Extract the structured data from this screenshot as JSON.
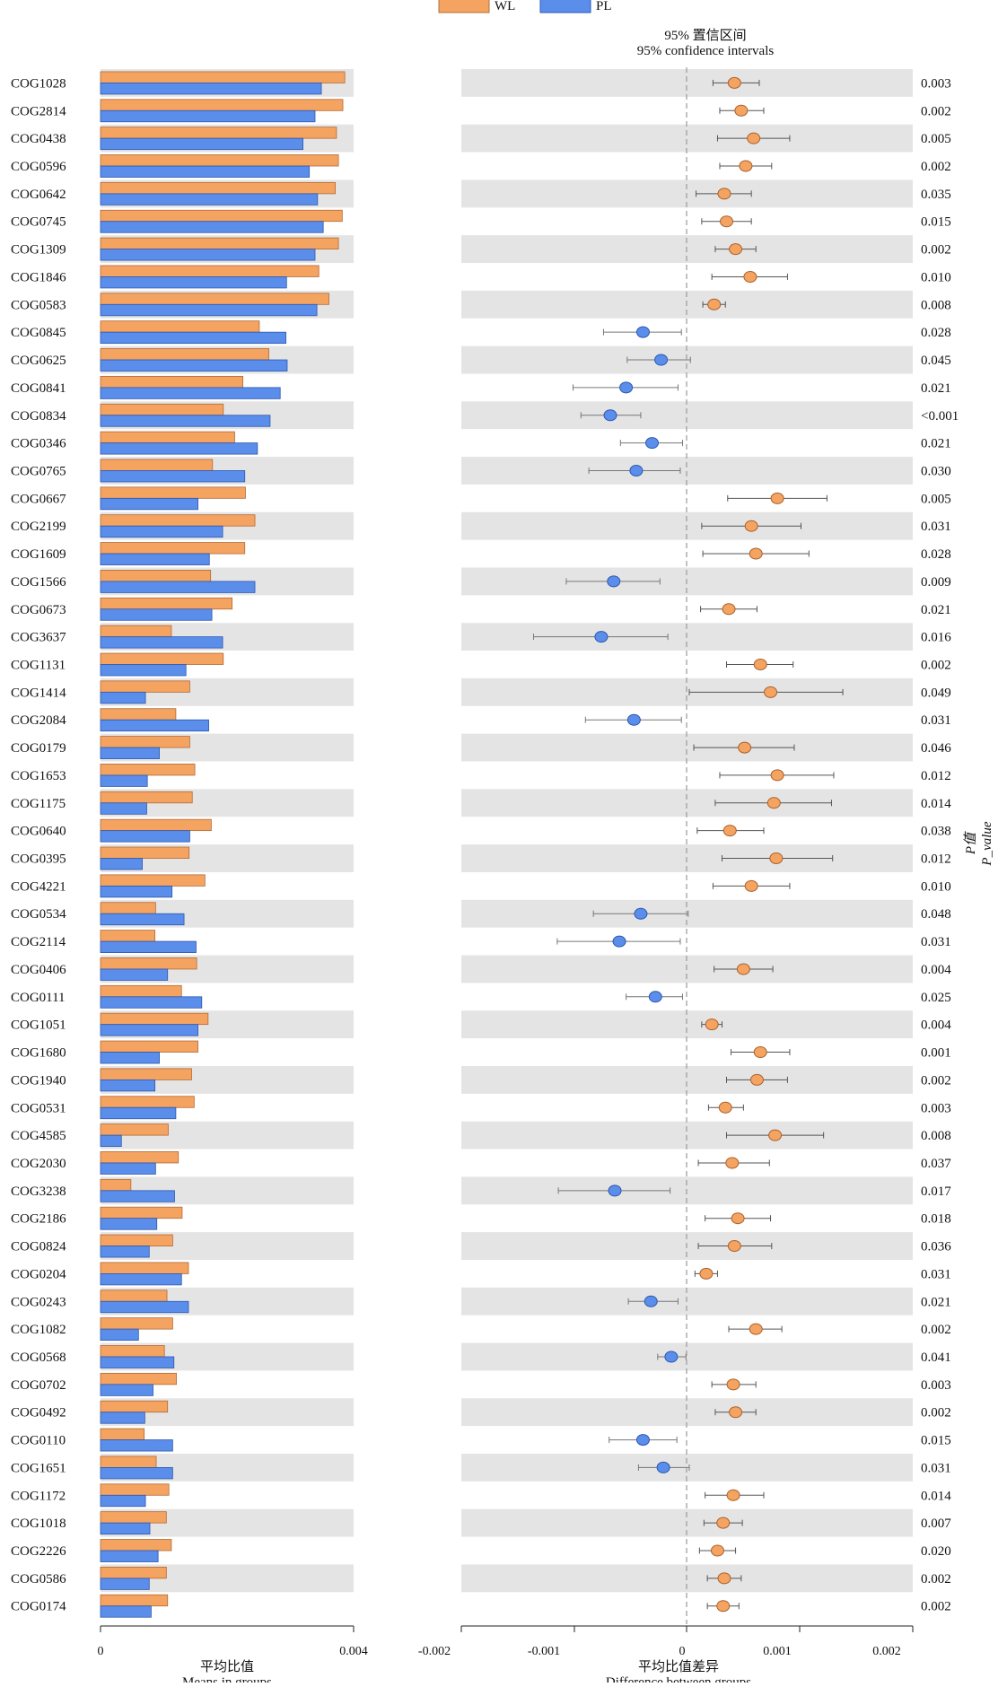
{
  "chart_data": {
    "type": "extended_error_bar",
    "legend": {
      "placement": "top",
      "entries": [
        {
          "name": "WL",
          "color": "#F4A361"
        },
        {
          "name": "PL",
          "color": "#5B8DEB"
        }
      ]
    },
    "ci_title": "95% 置信区间",
    "ci_title_en": "95% confidence intervals",
    "pvalue_label": "P值",
    "pvalue_label_en": "P_value",
    "left_panel": {
      "xlabel": "平均比值",
      "xlabel_en": "Means in groups",
      "xlim": [
        0,
        0.004
      ],
      "ticks": [
        "0",
        "0.004"
      ]
    },
    "right_panel": {
      "xlabel": "平均比值差异",
      "xlabel_en": "Difference between groups",
      "xlim": [
        -0.002,
        0.002
      ],
      "ticks": [
        "-0.002",
        "-0.001",
        "0",
        "0.001",
        "0.002"
      ],
      "zero_line": "dashed"
    },
    "categories": [
      "COG1028",
      "COG2814",
      "COG0438",
      "COG0596",
      "COG0642",
      "COG0745",
      "COG1309",
      "COG1846",
      "COG0583",
      "COG0845",
      "COG0625",
      "COG0841",
      "COG0834",
      "COG0346",
      "COG0765",
      "COG0667",
      "COG2199",
      "COG1609",
      "COG1566",
      "COG0673",
      "COG3637",
      "COG1131",
      "COG1414",
      "COG2084",
      "COG0179",
      "COG1653",
      "COG1175",
      "COG0640",
      "COG0395",
      "COG4221",
      "COG0534",
      "COG2114",
      "COG0406",
      "COG0111",
      "COG1051",
      "COG1680",
      "COG1940",
      "COG0531",
      "COG4585",
      "COG2030",
      "COG3238",
      "COG2186",
      "COG0824",
      "COG0204",
      "COG0243",
      "COG1082",
      "COG0568",
      "COG0702",
      "COG0492",
      "COG0110",
      "COG1651",
      "COG1172",
      "COG1018",
      "COG2226",
      "COG0586",
      "COG0174"
    ],
    "series": [
      {
        "name": "WL",
        "values": [
          0.00386,
          0.00383,
          0.00373,
          0.00376,
          0.00371,
          0.00382,
          0.00376,
          0.00345,
          0.00361,
          0.00251,
          0.00266,
          0.00225,
          0.00194,
          0.00212,
          0.00177,
          0.00229,
          0.00244,
          0.00228,
          0.00174,
          0.00208,
          0.00112,
          0.00194,
          0.00141,
          0.00119,
          0.00141,
          0.00149,
          0.00145,
          0.00175,
          0.0014,
          0.00165,
          0.00087,
          0.00086,
          0.00152,
          0.00128,
          0.0017,
          0.00154,
          0.00144,
          0.00148,
          0.00107,
          0.00123,
          0.00048,
          0.00129,
          0.00114,
          0.00139,
          0.00105,
          0.00114,
          0.00101,
          0.0012,
          0.00106,
          0.00069,
          0.00088,
          0.00108,
          0.00104,
          0.00112,
          0.00104,
          0.00106
        ]
      },
      {
        "name": "PL",
        "values": [
          0.00349,
          0.00339,
          0.0032,
          0.0033,
          0.00343,
          0.00352,
          0.00339,
          0.00294,
          0.00342,
          0.00293,
          0.00295,
          0.00284,
          0.00268,
          0.00248,
          0.00228,
          0.00154,
          0.00193,
          0.00172,
          0.00244,
          0.00176,
          0.00193,
          0.00135,
          0.00071,
          0.00171,
          0.00093,
          0.00074,
          0.00073,
          0.00141,
          0.00066,
          0.00113,
          0.00132,
          0.00151,
          0.00106,
          0.0016,
          0.00154,
          0.00093,
          0.00086,
          0.00119,
          0.00033,
          0.00087,
          0.00117,
          0.00089,
          0.00077,
          0.00128,
          0.00139,
          0.0006,
          0.00116,
          0.00083,
          0.0007,
          0.00114,
          0.00114,
          0.00071,
          0.00078,
          0.00091,
          0.00077,
          0.0008
        ]
      }
    ],
    "differences": [
      0.00042,
      0.00048,
      0.00059,
      0.00052,
      0.00033,
      0.00035,
      0.00043,
      0.00056,
      0.00024,
      -0.00039,
      -0.00023,
      -0.00054,
      -0.00068,
      -0.00031,
      -0.00045,
      0.0008,
      0.00057,
      0.00061,
      -0.00065,
      0.00037,
      -0.00076,
      0.00065,
      0.00074,
      -0.00047,
      0.00051,
      0.0008,
      0.00077,
      0.00038,
      0.00079,
      0.00057,
      -0.00041,
      -0.0006,
      0.0005,
      -0.00028,
      0.00022,
      0.00065,
      0.00062,
      0.00034,
      0.00078,
      0.0004,
      -0.00064,
      0.00045,
      0.00042,
      0.00017,
      -0.00032,
      0.00061,
      -0.00014,
      0.00041,
      0.00043,
      -0.00039,
      -0.00021,
      0.00041,
      0.00032,
      0.00027,
      0.00033,
      0.00032
    ],
    "ci_low": [
      0.00023,
      0.00029,
      0.00027,
      0.00029,
      8e-05,
      0.00013,
      0.00025,
      0.00022,
      0.00014,
      -0.00074,
      -0.00053,
      -0.00101,
      -0.00094,
      -0.00059,
      -0.00087,
      0.00036,
      0.00013,
      0.00014,
      -0.00107,
      0.00012,
      -0.00136,
      0.00035,
      2e-05,
      -0.0009,
      6e-05,
      0.00029,
      0.00025,
      9e-05,
      0.00031,
      0.00023,
      -0.00083,
      -0.00115,
      0.00024,
      -0.00054,
      0.00013,
      0.00039,
      0.00035,
      0.00019,
      0.00035,
      0.0001,
      -0.00114,
      0.00016,
      0.0001,
      7e-05,
      -0.00052,
      0.00037,
      -0.00026,
      0.00022,
      0.00025,
      -0.00069,
      -0.00043,
      0.00016,
      0.00015,
      0.00011,
      0.00018,
      0.00018
    ],
    "ci_high": [
      0.00064,
      0.00068,
      0.00091,
      0.00075,
      0.00057,
      0.00057,
      0.00061,
      0.00089,
      0.00034,
      -5e-05,
      3e-05,
      -8e-05,
      -0.00041,
      -4e-05,
      -6e-05,
      0.00124,
      0.00101,
      0.00108,
      -0.00024,
      0.00062,
      -0.00017,
      0.00094,
      0.00138,
      -5e-05,
      0.00095,
      0.0013,
      0.00128,
      0.00068,
      0.00129,
      0.00091,
      1e-05,
      -6e-05,
      0.00076,
      -4e-05,
      0.00031,
      0.00091,
      0.00089,
      0.0005,
      0.00121,
      0.00073,
      -0.00015,
      0.00074,
      0.00075,
      0.00027,
      -8e-05,
      0.00084,
      -1e-05,
      0.00061,
      0.00061,
      -9e-05,
      2e-05,
      0.00068,
      0.00049,
      0.00043,
      0.00048,
      0.00046
    ],
    "p_values": [
      "0.003",
      "0.002",
      "0.005",
      "0.002",
      "0.035",
      "0.015",
      "0.002",
      "0.010",
      "0.008",
      "0.028",
      "0.045",
      "0.021",
      "<0.001",
      "0.021",
      "0.030",
      "0.005",
      "0.031",
      "0.028",
      "0.009",
      "0.021",
      "0.016",
      "0.002",
      "0.049",
      "0.031",
      "0.046",
      "0.012",
      "0.014",
      "0.038",
      "0.012",
      "0.010",
      "0.048",
      "0.031",
      "0.004",
      "0.025",
      "0.004",
      "0.001",
      "0.002",
      "0.003",
      "0.008",
      "0.037",
      "0.017",
      "0.018",
      "0.036",
      "0.031",
      "0.021",
      "0.002",
      "0.041",
      "0.003",
      "0.002",
      "0.015",
      "0.031",
      "0.014",
      "0.007",
      "0.020",
      "0.002",
      "0.002"
    ],
    "grid": false,
    "row_stripes": true
  }
}
